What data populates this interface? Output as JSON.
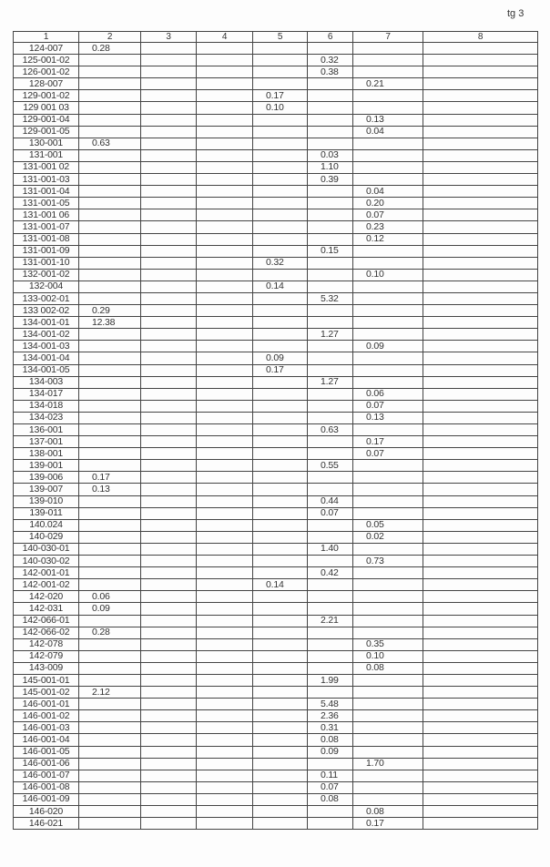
{
  "page_label": "tg 3",
  "columns": [
    "1",
    "2",
    "3",
    "4",
    "5",
    "6",
    "7",
    "8"
  ],
  "rows": [
    [
      "124-007",
      "0.28",
      "",
      "",
      "",
      "",
      "",
      ""
    ],
    [
      "125-001-02",
      "",
      "",
      "",
      "",
      "0.32",
      "",
      ""
    ],
    [
      "126-001-02",
      "",
      "",
      "",
      "",
      "0.38",
      "",
      ""
    ],
    [
      "128-007",
      "",
      "",
      "",
      "",
      "",
      "0.21",
      ""
    ],
    [
      "129-001-02",
      "",
      "",
      "",
      "0.17",
      "",
      "",
      ""
    ],
    [
      "129 001 03",
      "",
      "",
      "",
      "0.10",
      "",
      "",
      ""
    ],
    [
      "129-001-04",
      "",
      "",
      "",
      "",
      "",
      "0.13",
      ""
    ],
    [
      "129-001-05",
      "",
      "",
      "",
      "",
      "",
      "0.04",
      ""
    ],
    [
      "130-001",
      "0.63",
      "",
      "",
      "",
      "",
      "",
      ""
    ],
    [
      "131-001",
      "",
      "",
      "",
      "",
      "0.03",
      "",
      ""
    ],
    [
      "131-001 02",
      "",
      "",
      "",
      "",
      "1.10",
      "",
      ""
    ],
    [
      "131-001-03",
      "",
      "",
      "",
      "",
      "0.39",
      "",
      ""
    ],
    [
      "131-001-04",
      "",
      "",
      "",
      "",
      "",
      "0.04",
      ""
    ],
    [
      "131-001-05",
      "",
      "",
      "",
      "",
      "",
      "0.20",
      ""
    ],
    [
      "131-001 06",
      "",
      "",
      "",
      "",
      "",
      "0.07",
      ""
    ],
    [
      "131-001-07",
      "",
      "",
      "",
      "",
      "",
      "0.23",
      ""
    ],
    [
      "131-001-08",
      "",
      "",
      "",
      "",
      "",
      "0.12",
      ""
    ],
    [
      "131-001-09",
      "",
      "",
      "",
      "",
      "0.15",
      "",
      ""
    ],
    [
      "131-001-10",
      "",
      "",
      "",
      "0.32",
      "",
      "",
      ""
    ],
    [
      "132-001-02",
      "",
      "",
      "",
      "",
      "",
      "0.10",
      ""
    ],
    [
      "132-004",
      "",
      "",
      "",
      "0.14",
      "",
      "",
      ""
    ],
    [
      "133-002-01",
      "",
      "",
      "",
      "",
      "5.32",
      "",
      ""
    ],
    [
      "133 002-02",
      "0.29",
      "",
      "",
      "",
      "",
      "",
      ""
    ],
    [
      "134-001-01",
      "12.38",
      "",
      "",
      "",
      "",
      "",
      ""
    ],
    [
      "134-001-02",
      "",
      "",
      "",
      "",
      "1.27",
      "",
      ""
    ],
    [
      "134-001-03",
      "",
      "",
      "",
      "",
      "",
      "0.09",
      ""
    ],
    [
      "134-001-04",
      "",
      "",
      "",
      "0.09",
      "",
      "",
      ""
    ],
    [
      "134-001-05",
      "",
      "",
      "",
      "0.17",
      "",
      "",
      ""
    ],
    [
      "134-003",
      "",
      "",
      "",
      "",
      "1.27",
      "",
      ""
    ],
    [
      "134-017",
      "",
      "",
      "",
      "",
      "",
      "0.06",
      ""
    ],
    [
      "134-018",
      "",
      "",
      "",
      "",
      "",
      "0.07",
      ""
    ],
    [
      "134-023",
      "",
      "",
      "",
      "",
      "",
      "0.13",
      ""
    ],
    [
      "136-001",
      "",
      "",
      "",
      "",
      "0.63",
      "",
      ""
    ],
    [
      "137-001",
      "",
      "",
      "",
      "",
      "",
      "0.17",
      ""
    ],
    [
      "138-001",
      "",
      "",
      "",
      "",
      "",
      "0.07",
      ""
    ],
    [
      "139-001",
      "",
      "",
      "",
      "",
      "0.55",
      "",
      ""
    ],
    [
      "139-006",
      "0.17",
      "",
      "",
      "",
      "",
      "",
      ""
    ],
    [
      "139-007",
      "0.13",
      "",
      "",
      "",
      "",
      "",
      ""
    ],
    [
      "139-010",
      "",
      "",
      "",
      "",
      "0.44",
      "",
      ""
    ],
    [
      "139-011",
      "",
      "",
      "",
      "",
      "0.07",
      "",
      ""
    ],
    [
      "140.024",
      "",
      "",
      "",
      "",
      "",
      "0.05",
      ""
    ],
    [
      "140-029",
      "",
      "",
      "",
      "",
      "",
      "0.02",
      ""
    ],
    [
      "140-030-01",
      "",
      "",
      "",
      "",
      "1.40",
      "",
      ""
    ],
    [
      "140-030-02",
      "",
      "",
      "",
      "",
      "",
      "0.73",
      ""
    ],
    [
      "142-001-01",
      "",
      "",
      "",
      "",
      "0.42",
      "",
      ""
    ],
    [
      "142-001-02",
      "",
      "",
      "",
      "0.14",
      "",
      "",
      ""
    ],
    [
      "142-020",
      "0.06",
      "",
      "",
      "",
      "",
      "",
      ""
    ],
    [
      "142-031",
      "0.09",
      "",
      "",
      "",
      "",
      "",
      ""
    ],
    [
      "142-066-01",
      "",
      "",
      "",
      "",
      "2.21",
      "",
      ""
    ],
    [
      "142-066-02",
      "0.28",
      "",
      "",
      "",
      "",
      "",
      ""
    ],
    [
      "142-078",
      "",
      "",
      "",
      "",
      "",
      "0.35",
      ""
    ],
    [
      "142-079",
      "",
      "",
      "",
      "",
      "",
      "0.10",
      ""
    ],
    [
      "143-009",
      "",
      "",
      "",
      "",
      "",
      "0.08",
      ""
    ],
    [
      "145-001-01",
      "",
      "",
      "",
      "",
      "1.99",
      "",
      ""
    ],
    [
      "145-001-02",
      "2.12",
      "",
      "",
      "",
      "",
      "",
      ""
    ],
    [
      "146-001-01",
      "",
      "",
      "",
      "",
      "5.48",
      "",
      ""
    ],
    [
      "146-001-02",
      "",
      "",
      "",
      "",
      "2.36",
      "",
      ""
    ],
    [
      "146-001-03",
      "",
      "",
      "",
      "",
      "0.31",
      "",
      ""
    ],
    [
      "146-001-04",
      "",
      "",
      "",
      "",
      "0.08",
      "",
      ""
    ],
    [
      "146-001-05",
      "",
      "",
      "",
      "",
      "0.09",
      "",
      ""
    ],
    [
      "146-001-06",
      "",
      "",
      "",
      "",
      "",
      "1.70",
      ""
    ],
    [
      "146-001-07",
      "",
      "",
      "",
      "",
      "0.11",
      "",
      ""
    ],
    [
      "146-001-08",
      "",
      "",
      "",
      "",
      "0.07",
      "",
      ""
    ],
    [
      "146-001-09",
      "",
      "",
      "",
      "",
      "0.08",
      "",
      ""
    ],
    [
      "146-020",
      "",
      "",
      "",
      "",
      "",
      "0.08",
      ""
    ],
    [
      "146-021",
      "",
      "",
      "",
      "",
      "",
      "0.17",
      ""
    ]
  ]
}
